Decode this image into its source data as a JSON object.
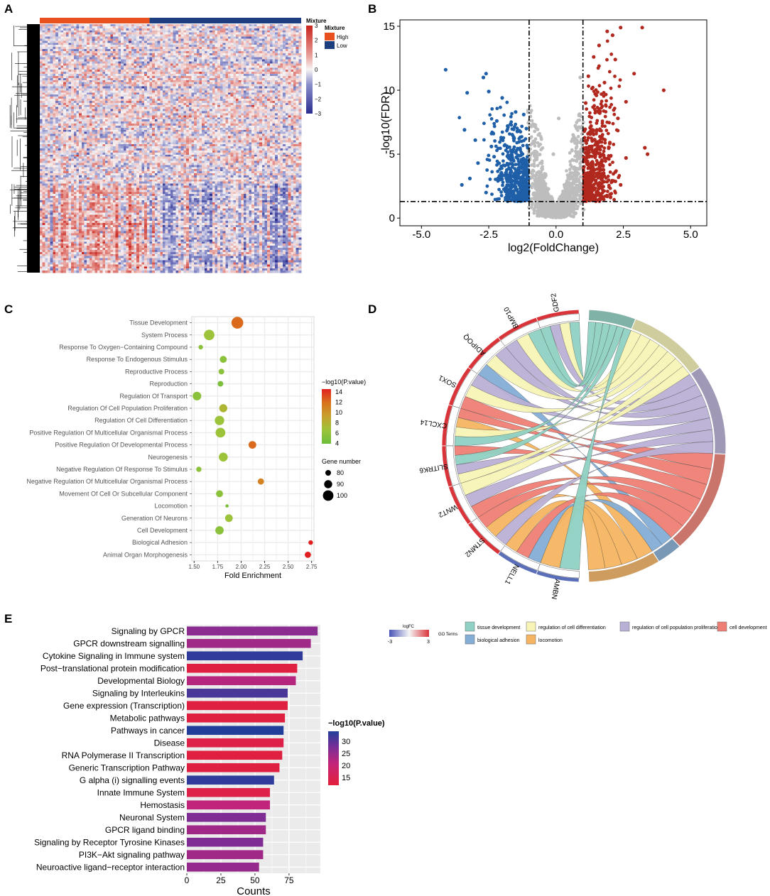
{
  "panel_labels": [
    "A",
    "B",
    "C",
    "D",
    "E"
  ],
  "colors": {
    "high": "#e8501f",
    "low": "#1e3f7f",
    "blue": "#1f5fa8",
    "red": "#b0281e",
    "grey": "#bdbdbd",
    "grid": "#ececec",
    "bg_e": "#ebebeb"
  },
  "chart_data": [
    {
      "panel": "A",
      "type": "heatmap",
      "title": "",
      "annotation_title": "Mixture",
      "annotation_legend": {
        "title": "Mixture",
        "entries": [
          {
            "label": "High",
            "color": "#e8501f"
          },
          {
            "label": "Low",
            "color": "#1e3f7f"
          }
        ]
      },
      "colorbar": {
        "ticks": [
          3,
          2,
          1,
          0,
          -1,
          -2,
          -3
        ],
        "range": [
          -3,
          3
        ]
      },
      "groups": {
        "High": 42,
        "Low": 58
      }
    },
    {
      "panel": "B",
      "type": "scatter",
      "title": "",
      "xlabel": "log2(FoldChange)",
      "ylabel": "-log10(FDR)",
      "xlim": [
        -5.8,
        5.6
      ],
      "ylim": [
        -0.6,
        15.5
      ],
      "xticks": [
        -5.0,
        -2.5,
        0.0,
        2.5,
        5.0
      ],
      "xtick_labels": [
        "-5.0",
        "-2.5",
        "0.0",
        "2.5",
        "5.0"
      ],
      "yticks": [
        0,
        5,
        10,
        15
      ],
      "ytick_labels": [
        "0",
        "5",
        "10",
        "15"
      ],
      "thresholds": {
        "x": [
          -1,
          1
        ],
        "y": 1.3
      },
      "series": [
        {
          "name": "down",
          "color": "#1f5fa8",
          "points": [
            [
              -4.1,
              11.6
            ],
            [
              -3.3,
              9.8
            ],
            [
              -2.6,
              11.3
            ],
            [
              -2.7,
              11.0
            ],
            [
              -2.5,
              9.9
            ],
            [
              -2.0,
              9.4
            ],
            [
              -1.5,
              8.3
            ],
            [
              -1.2,
              8.1
            ],
            [
              -3.4,
              6.9
            ],
            [
              -3.0,
              6.1
            ],
            [
              -2.2,
              7.6
            ],
            [
              -1.8,
              7.2
            ],
            [
              -1.4,
              6.8
            ],
            [
              -1.1,
              7.0
            ],
            [
              -2.4,
              5.6
            ],
            [
              -2.9,
              4.3
            ],
            [
              -3.5,
              2.6
            ],
            [
              -3.2,
              3.1
            ],
            [
              -1.6,
              5.2
            ],
            [
              -1.3,
              4.4
            ],
            [
              -2.1,
              3.3
            ],
            [
              -1.7,
              2.5
            ],
            [
              -1.2,
              3.6
            ],
            [
              -1.1,
              1.9
            ],
            [
              -2.6,
              2.0
            ],
            [
              -1.9,
              4.1
            ],
            [
              -1.5,
              3.0
            ],
            [
              -1.3,
              2.1
            ],
            [
              -2.3,
              4.8
            ],
            [
              -1.05,
              5.5
            ]
          ]
        },
        {
          "name": "up",
          "color": "#b0281e",
          "points": [
            [
              2.4,
              14.9
            ],
            [
              3.2,
              14.9
            ],
            [
              1.9,
              14.6
            ],
            [
              2.1,
              14.3
            ],
            [
              1.6,
              13.5
            ],
            [
              1.4,
              12.6
            ],
            [
              2.2,
              12.4
            ],
            [
              2.9,
              11.3
            ],
            [
              1.2,
              11.1
            ],
            [
              1.8,
              10.6
            ],
            [
              4.0,
              10.0
            ],
            [
              1.5,
              9.6
            ],
            [
              2.6,
              9.1
            ],
            [
              1.1,
              9.0
            ],
            [
              2.3,
              7.8
            ],
            [
              3.3,
              5.5
            ],
            [
              3.4,
              5.0
            ],
            [
              1.3,
              7.2
            ],
            [
              1.7,
              6.4
            ],
            [
              2.0,
              5.9
            ],
            [
              2.6,
              4.7
            ],
            [
              1.2,
              4.2
            ],
            [
              1.6,
              3.3
            ],
            [
              2.2,
              3.6
            ],
            [
              1.1,
              2.4
            ],
            [
              1.5,
              2.0
            ],
            [
              1.9,
              1.7
            ],
            [
              2.4,
              2.6
            ],
            [
              1.3,
              5.6
            ],
            [
              1.05,
              6.8
            ]
          ]
        },
        {
          "name": "ns",
          "color": "#bdbdbd",
          "points": [
            [
              -0.2,
              0.1
            ],
            [
              0.2,
              0.1
            ],
            [
              0.1,
              7.8
            ],
            [
              -0.1,
              5.0
            ],
            [
              0.9,
              11.0
            ],
            [
              -0.8,
              4.5
            ],
            [
              0.6,
              2.0
            ],
            [
              -0.5,
              1.8
            ]
          ]
        }
      ]
    },
    {
      "panel": "C",
      "type": "scatter",
      "title": "",
      "xlabel": "Fold Enrichment",
      "ylabel": "",
      "xlim": [
        1.475,
        2.775
      ],
      "xticks": [
        1.5,
        1.75,
        2.0,
        2.25,
        2.5,
        2.75
      ],
      "xtick_labels": [
        "1.50",
        "1.75",
        "2.00",
        "2.25",
        "2.50",
        "2.75"
      ],
      "categories": [
        "Tissue Development",
        "System Process",
        "Response To Oxygen−Containing Compound",
        "Response To Endogenous Stimulus",
        "Reproductive Process",
        "Reproduction",
        "Regulation Of Transport",
        "Regulation Of Cell Population Proliferation",
        "Regulation Of Cell Differentiation",
        "Positive Regulation Of Multicellular Organismal Process",
        "Positive Regulation Of Developmental Process",
        "Neurogenesis",
        "Negative Regulation Of Response To Stimulus",
        "Negative Regulation Of Multicellular Organismal Process",
        "Movement Of Cell Or Subcellular Component",
        "Locomotion",
        "Generation Of Neurons",
        "Cell Development",
        "Biological Adhesion",
        "Animal Organ Morphogenesis"
      ],
      "x": [
        1.96,
        1.66,
        1.57,
        1.81,
        1.79,
        1.78,
        1.53,
        1.81,
        1.77,
        1.78,
        2.12,
        1.81,
        1.55,
        2.21,
        1.77,
        1.85,
        1.87,
        1.77,
        2.74,
        2.71
      ],
      "gene_number": [
        105,
        100,
        75,
        85,
        80,
        80,
        92,
        90,
        95,
        97,
        88,
        93,
        78,
        82,
        85,
        70,
        88,
        91,
        75,
        82
      ],
      "neg_log10_p": [
        12,
        7,
        6,
        6,
        6,
        5,
        6,
        8,
        7,
        7,
        12,
        7,
        6,
        11,
        6,
        5,
        7,
        6,
        14,
        14
      ],
      "legend_color": {
        "title": "−log10(P.value)",
        "ticks": [
          14,
          12,
          10,
          8,
          6,
          4
        ]
      },
      "legend_size": {
        "title": "Gene number",
        "values": [
          80,
          90,
          100
        ]
      }
    },
    {
      "panel": "D",
      "type": "chord",
      "genes": [
        "GDF2",
        "BMP10",
        "ADIPOQ",
        "SOX1",
        "CXCL14",
        "SLITRK6",
        "WNT2",
        "STMN2",
        "NELL1",
        "AMBN"
      ],
      "terms": [
        "tissue development",
        "regulation of cell differentiation",
        "regulation of cell population proliferation",
        "cell development",
        "biological adhesion",
        "locomotion"
      ],
      "term_colors": [
        "#8fd1c3",
        "#f7f4b5",
        "#b9b0d6",
        "#ef7f74",
        "#84aed6",
        "#f5b461"
      ],
      "legend_title_logfc": "logFC",
      "logfc_range_labels": [
        "-3",
        "3"
      ],
      "legend_title_terms": "GO Terms"
    },
    {
      "panel": "E",
      "type": "bar",
      "title": "",
      "xlabel": "Counts",
      "ylabel": "",
      "categories": [
        "Signaling by GPCR",
        "GPCR downstream signalling",
        "Cytokine Signaling in Immune system",
        "Post−translational protein modification",
        "Developmental Biology",
        "Signaling by Interleukins",
        "Gene expression (Transcription)",
        "Metabolic pathways",
        "Pathways in cancer",
        "Disease",
        "RNA Polymerase II Transcription",
        "Generic Transcription Pathway",
        "G alpha (i) signalling events",
        "Innate Immune System",
        "Hemostasis",
        "Neuronal System",
        "GPCR ligand binding",
        "Signaling by Receptor Tyrosine Kinases",
        "PI3K−Akt signaling pathway",
        "Neuroactive ligand−receptor interaction"
      ],
      "values": [
        96,
        91,
        85,
        81,
        80,
        74,
        74,
        72,
        71,
        71,
        70,
        68,
        64,
        61,
        61,
        58,
        58,
        56,
        56,
        53
      ],
      "neg_log10_p": [
        26,
        24,
        33,
        13,
        22,
        31,
        13,
        13,
        34,
        14,
        13,
        13,
        33,
        14,
        21,
        27,
        24,
        27,
        24,
        25
      ],
      "xlim": [
        0,
        98
      ],
      "xticks": [
        0,
        25,
        50,
        75
      ],
      "xtick_labels": [
        "0",
        "25",
        "50",
        "75"
      ],
      "legend": {
        "title": "−log10(P.value)",
        "ticks": [
          30,
          25,
          20,
          15
        ]
      }
    }
  ]
}
